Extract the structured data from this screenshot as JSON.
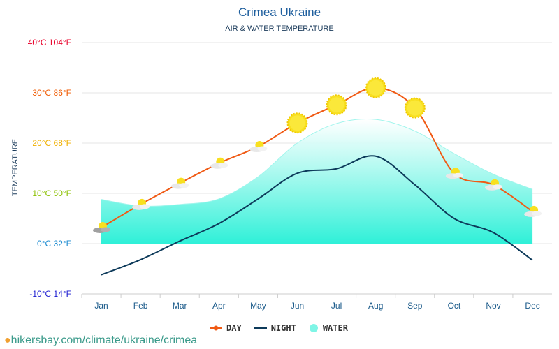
{
  "header": {
    "title": "Crimea Ukraine",
    "subtitle": "AIR & WATER TEMPERATURE"
  },
  "footer": {
    "url": "hikersbay.com/climate/ukraine/crimea"
  },
  "chart_data": {
    "type": "line",
    "title": "Crimea Ukraine",
    "subtitle": "AIR & WATER TEMPERATURE",
    "ylabel": "TEMPERATURE",
    "ylim": [
      -10,
      40
    ],
    "grid": true,
    "legend_position": "bottom",
    "categories": [
      "Jan",
      "Feb",
      "Mar",
      "Apr",
      "May",
      "Jun",
      "Jul",
      "Aug",
      "Sep",
      "Oct",
      "Nov",
      "Dec"
    ],
    "y_ticks": [
      {
        "c": 40,
        "label": "40°C 104°F",
        "color": "#e8002a"
      },
      {
        "c": 30,
        "label": "30°C 86°F",
        "color": "#f05a00"
      },
      {
        "c": 20,
        "label": "20°C 68°F",
        "color": "#f0b000"
      },
      {
        "c": 10,
        "label": "10°C 50°F",
        "color": "#8bc000"
      },
      {
        "c": 0,
        "label": "0°C 32°F",
        "color": "#1a8ad0"
      },
      {
        "c": -10,
        "label": "-10°C 14°F",
        "color": "#1a1ad0"
      }
    ],
    "series": [
      {
        "name": "DAY",
        "color": "#f05a14",
        "values": [
          3.2,
          7.8,
          12,
          16,
          19.3,
          24,
          27.6,
          31,
          27,
          14,
          11.7,
          6.4
        ]
      },
      {
        "name": "NIGHT",
        "color": "#0d3a5a",
        "values": [
          -6.2,
          -3.2,
          0.5,
          4,
          8.9,
          14,
          14.9,
          17.4,
          11.7,
          5,
          2.2,
          -3.3
        ]
      },
      {
        "name": "WATER",
        "color": "#7ff5e6",
        "values": [
          8.8,
          7.5,
          7.8,
          8.9,
          13.3,
          20,
          23.9,
          24.7,
          22.4,
          17.9,
          13.8,
          10.8
        ]
      }
    ],
    "weather_icons": [
      "cloud-sun",
      "cloud-sun",
      "cloud-sun",
      "cloud-sun",
      "cloud-sun",
      "sun",
      "sun",
      "sun",
      "sun",
      "cloud-sun",
      "cloud-sun",
      "cloud-sun"
    ]
  }
}
